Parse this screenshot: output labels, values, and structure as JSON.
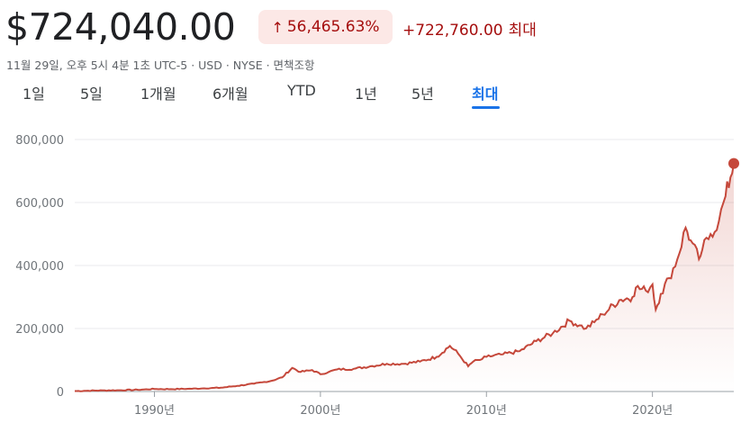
{
  "header": {
    "price": "$724,040.00",
    "percent_change": "56,465.63%",
    "absolute_change": "+722,760.00",
    "period_label": "최대",
    "meta": "11월 29일, 오후 5시 4분 1초 UTC-5 · USD · NYSE · 면책조항",
    "change_color": "#a50e0e",
    "badge_bg": "#fce8e6",
    "up_arrow_icon": "arrow-up-icon"
  },
  "tabs": [
    {
      "label": "1일",
      "active": false
    },
    {
      "label": "5일",
      "active": false
    },
    {
      "label": "1개월",
      "active": false
    },
    {
      "label": "6개월",
      "active": false
    },
    {
      "label": "YTD",
      "active": false
    },
    {
      "label": "1년",
      "active": false
    },
    {
      "label": "5년",
      "active": false
    },
    {
      "label": "최대",
      "active": true
    }
  ],
  "colors": {
    "line": "#c5483b",
    "accent": "#1a73e8",
    "grid": "#e8eaed"
  },
  "chart_data": {
    "type": "area",
    "title": "",
    "xlabel": "",
    "ylabel": "",
    "ylim": [
      0,
      800000
    ],
    "xlim": [
      1985.2,
      2024.9
    ],
    "y_ticks": [
      0,
      200000,
      400000,
      600000,
      800000
    ],
    "y_tick_labels": [
      "0",
      "200,000",
      "400,000",
      "600,000",
      "800,000"
    ],
    "x_ticks": [
      1990,
      2000,
      2010,
      2020
    ],
    "x_tick_labels": [
      "1990년",
      "2000년",
      "2010년",
      "2020년"
    ],
    "grid": true,
    "series": [
      {
        "x": [
          1985.2,
          1986,
          1987,
          1988,
          1989,
          1990,
          1991,
          1992,
          1993,
          1994,
          1995,
          1996,
          1997,
          1997.7,
          1998.3,
          1998.8,
          1999.5,
          2000,
          2000.5,
          2001,
          2002,
          2003,
          2004,
          2005,
          2006,
          2007,
          2007.8,
          2008.3,
          2008.9,
          2009.2,
          2009.6,
          2010,
          2011,
          2012,
          2013,
          2014,
          2015,
          2015.6,
          2016,
          2016.5,
          2017,
          2018,
          2018.8,
          2019,
          2019.6,
          2020,
          2020.2,
          2020.5,
          2021,
          2021.5,
          2022,
          2022.3,
          2022.8,
          2023,
          2023.5,
          2024,
          2024.4,
          2024.7,
          2024.9
        ],
        "y": [
          1300,
          2500,
          3500,
          4000,
          5500,
          8000,
          7500,
          8500,
          10000,
          12000,
          18000,
          25000,
          33000,
          45000,
          75000,
          62000,
          68000,
          55000,
          62000,
          70000,
          72000,
          80000,
          88000,
          88000,
          95000,
          110000,
          145000,
          120000,
          80000,
          95000,
          100000,
          110000,
          118000,
          128000,
          160000,
          185000,
          225000,
          210000,
          200000,
          220000,
          245000,
          290000,
          300000,
          330000,
          320000,
          340000,
          260000,
          310000,
          360000,
          420000,
          520000,
          480000,
          420000,
          450000,
          500000,
          540000,
          620000,
          680000,
          724040
        ]
      }
    ]
  }
}
